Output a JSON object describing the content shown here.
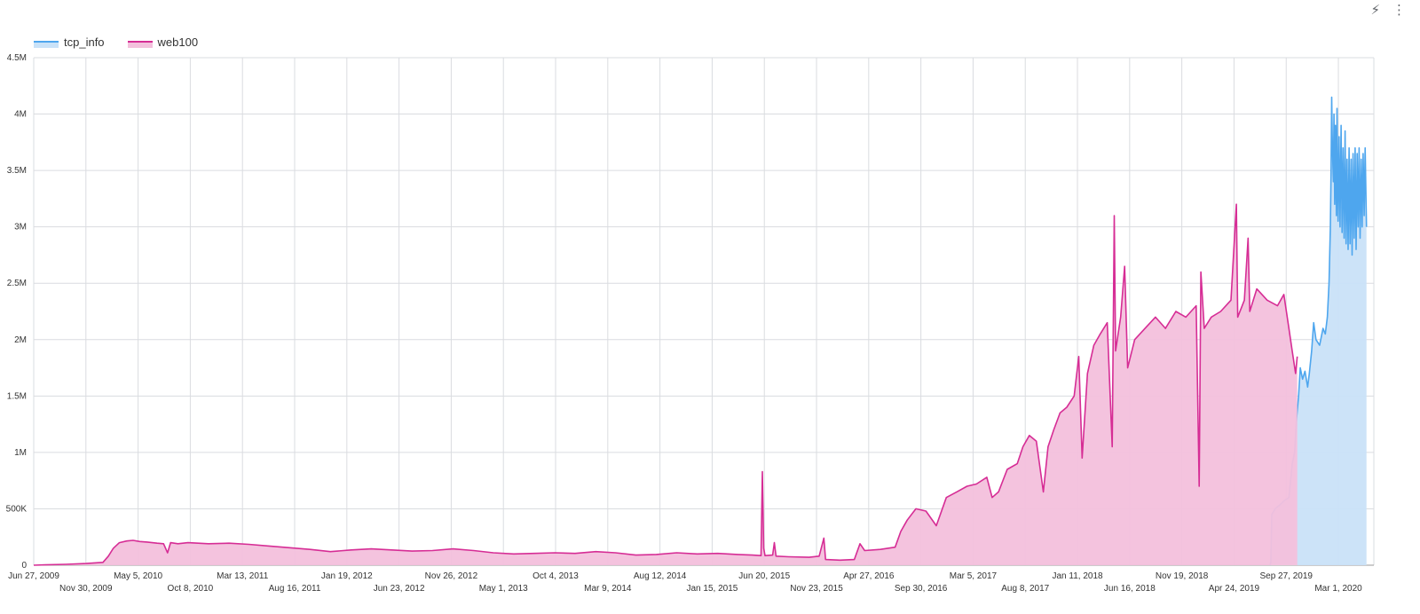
{
  "toolbar": {
    "quick_icon": "bolt-icon",
    "menu_icon": "more-vert-icon",
    "quick_glyph": "⚡",
    "menu_glyph": "⋮"
  },
  "colors": {
    "tcp_info": "#4ea6ee",
    "tcp_info_fill": "#c9e2f8",
    "web100": "#d62d95",
    "web100_fill": "#f3c0dc"
  },
  "chart_data": {
    "type": "area",
    "title": "",
    "xlabel": "",
    "ylabel": "",
    "ylim": [
      0,
      4500000
    ],
    "y_ticks": [
      {
        "value": 0,
        "label": "0"
      },
      {
        "value": 500000,
        "label": "500K"
      },
      {
        "value": 1000000,
        "label": "1M"
      },
      {
        "value": 1500000,
        "label": "1.5M"
      },
      {
        "value": 2000000,
        "label": "2M"
      },
      {
        "value": 2500000,
        "label": "2.5M"
      },
      {
        "value": 3000000,
        "label": "3M"
      },
      {
        "value": 3500000,
        "label": "3.5M"
      },
      {
        "value": 4000000,
        "label": "4M"
      },
      {
        "value": 4500000,
        "label": "4.5M"
      }
    ],
    "x_range": [
      "2009-06-27",
      "2020-06-15"
    ],
    "x_ticks": [
      {
        "date": "2009-06-27",
        "label": "Jun 27, 2009"
      },
      {
        "date": "2009-11-30",
        "label": "Nov 30, 2009"
      },
      {
        "date": "2010-05-05",
        "label": "May 5, 2010"
      },
      {
        "date": "2010-10-08",
        "label": "Oct 8, 2010"
      },
      {
        "date": "2011-03-13",
        "label": "Mar 13, 2011"
      },
      {
        "date": "2011-08-16",
        "label": "Aug 16, 2011"
      },
      {
        "date": "2012-01-19",
        "label": "Jan 19, 2012"
      },
      {
        "date": "2012-06-23",
        "label": "Jun 23, 2012"
      },
      {
        "date": "2012-11-26",
        "label": "Nov 26, 2012"
      },
      {
        "date": "2013-05-01",
        "label": "May 1, 2013"
      },
      {
        "date": "2013-10-04",
        "label": "Oct 4, 2013"
      },
      {
        "date": "2014-03-09",
        "label": "Mar 9, 2014"
      },
      {
        "date": "2014-08-12",
        "label": "Aug 12, 2014"
      },
      {
        "date": "2015-01-15",
        "label": "Jan 15, 2015"
      },
      {
        "date": "2015-06-20",
        "label": "Jun 20, 2015"
      },
      {
        "date": "2015-11-23",
        "label": "Nov 23, 2015"
      },
      {
        "date": "2016-04-27",
        "label": "Apr 27, 2016"
      },
      {
        "date": "2016-09-30",
        "label": "Sep 30, 2016"
      },
      {
        "date": "2017-03-05",
        "label": "Mar 5, 2017"
      },
      {
        "date": "2017-08-08",
        "label": "Aug 8, 2017"
      },
      {
        "date": "2018-01-11",
        "label": "Jan 11, 2018"
      },
      {
        "date": "2018-06-16",
        "label": "Jun 16, 2018"
      },
      {
        "date": "2018-11-19",
        "label": "Nov 19, 2018"
      },
      {
        "date": "2019-04-24",
        "label": "Apr 24, 2019"
      },
      {
        "date": "2019-09-27",
        "label": "Sep 27, 2019"
      },
      {
        "date": "2020-03-01",
        "label": "Mar 1, 2020"
      }
    ],
    "legend_placement": "top-left",
    "grid": true,
    "series": [
      {
        "name": "tcp_info",
        "points": [
          [
            "2019-08-10",
            0
          ],
          [
            "2019-08-12",
            30000
          ],
          [
            "2019-08-15",
            450000
          ],
          [
            "2019-08-25",
            500000
          ],
          [
            "2019-09-10",
            540000
          ],
          [
            "2019-09-20",
            570000
          ],
          [
            "2019-10-05",
            600000
          ],
          [
            "2019-10-15",
            900000
          ],
          [
            "2019-10-22",
            1000000
          ],
          [
            "2019-10-28",
            1300000
          ],
          [
            "2019-11-03",
            1500000
          ],
          [
            "2019-11-08",
            1750000
          ],
          [
            "2019-11-15",
            1650000
          ],
          [
            "2019-11-22",
            1720000
          ],
          [
            "2019-11-30",
            1580000
          ],
          [
            "2019-12-05",
            1700000
          ],
          [
            "2019-12-12",
            1900000
          ],
          [
            "2019-12-18",
            2150000
          ],
          [
            "2019-12-25",
            2000000
          ],
          [
            "2020-01-05",
            1950000
          ],
          [
            "2020-01-15",
            2100000
          ],
          [
            "2020-01-22",
            2050000
          ],
          [
            "2020-01-28",
            2200000
          ],
          [
            "2020-02-02",
            2500000
          ],
          [
            "2020-02-06",
            3000000
          ],
          [
            "2020-02-08",
            3500000
          ],
          [
            "2020-02-10",
            4150000
          ],
          [
            "2020-02-12",
            3700000
          ],
          [
            "2020-02-15",
            3400000
          ],
          [
            "2020-02-17",
            4000000
          ],
          [
            "2020-02-19",
            3200000
          ],
          [
            "2020-02-21",
            3900000
          ],
          [
            "2020-02-24",
            3100000
          ],
          [
            "2020-02-26",
            4050000
          ],
          [
            "2020-02-29",
            3050000
          ],
          [
            "2020-03-03",
            3800000
          ],
          [
            "2020-03-06",
            3000000
          ],
          [
            "2020-03-09",
            3900000
          ],
          [
            "2020-03-12",
            2950000
          ],
          [
            "2020-03-15",
            3700000
          ],
          [
            "2020-03-18",
            2900000
          ],
          [
            "2020-03-21",
            3850000
          ],
          [
            "2020-03-24",
            2850000
          ],
          [
            "2020-03-27",
            3600000
          ],
          [
            "2020-03-30",
            2800000
          ],
          [
            "2020-04-02",
            3700000
          ],
          [
            "2020-04-05",
            2850000
          ],
          [
            "2020-04-08",
            3600000
          ],
          [
            "2020-04-11",
            2750000
          ],
          [
            "2020-04-14",
            3650000
          ],
          [
            "2020-04-17",
            2900000
          ],
          [
            "2020-04-20",
            3700000
          ],
          [
            "2020-04-23",
            2800000
          ],
          [
            "2020-04-26",
            3650000
          ],
          [
            "2020-04-29",
            3000000
          ],
          [
            "2020-05-02",
            3700000
          ],
          [
            "2020-05-05",
            2900000
          ],
          [
            "2020-05-08",
            3600000
          ],
          [
            "2020-05-11",
            3000000
          ],
          [
            "2020-05-14",
            3650000
          ],
          [
            "2020-05-17",
            3100000
          ],
          [
            "2020-05-20",
            3700000
          ],
          [
            "2020-05-24",
            3000000
          ]
        ]
      },
      {
        "name": "web100",
        "points": [
          [
            "2009-06-27",
            0
          ],
          [
            "2009-08-01",
            3000
          ],
          [
            "2009-10-01",
            8000
          ],
          [
            "2009-12-01",
            15000
          ],
          [
            "2010-01-20",
            25000
          ],
          [
            "2010-02-05",
            80000
          ],
          [
            "2010-02-20",
            150000
          ],
          [
            "2010-03-10",
            200000
          ],
          [
            "2010-04-01",
            215000
          ],
          [
            "2010-04-20",
            220000
          ],
          [
            "2010-05-10",
            210000
          ],
          [
            "2010-06-01",
            205000
          ],
          [
            "2010-07-01",
            195000
          ],
          [
            "2010-07-20",
            190000
          ],
          [
            "2010-08-01",
            110000
          ],
          [
            "2010-08-10",
            200000
          ],
          [
            "2010-09-01",
            190000
          ],
          [
            "2010-10-01",
            200000
          ],
          [
            "2010-12-01",
            190000
          ],
          [
            "2011-02-01",
            195000
          ],
          [
            "2011-04-01",
            185000
          ],
          [
            "2011-06-01",
            170000
          ],
          [
            "2011-08-01",
            155000
          ],
          [
            "2011-10-01",
            140000
          ],
          [
            "2011-12-01",
            120000
          ],
          [
            "2012-02-01",
            135000
          ],
          [
            "2012-04-01",
            145000
          ],
          [
            "2012-06-01",
            135000
          ],
          [
            "2012-08-01",
            125000
          ],
          [
            "2012-10-01",
            130000
          ],
          [
            "2012-12-01",
            145000
          ],
          [
            "2013-02-01",
            130000
          ],
          [
            "2013-04-01",
            110000
          ],
          [
            "2013-06-01",
            100000
          ],
          [
            "2013-08-01",
            105000
          ],
          [
            "2013-10-01",
            110000
          ],
          [
            "2013-12-01",
            105000
          ],
          [
            "2014-02-01",
            120000
          ],
          [
            "2014-04-01",
            110000
          ],
          [
            "2014-06-01",
            90000
          ],
          [
            "2014-08-01",
            95000
          ],
          [
            "2014-10-01",
            110000
          ],
          [
            "2014-12-01",
            100000
          ],
          [
            "2015-02-01",
            105000
          ],
          [
            "2015-04-01",
            95000
          ],
          [
            "2015-05-15",
            90000
          ],
          [
            "2015-06-10",
            85000
          ],
          [
            "2015-06-14",
            830000
          ],
          [
            "2015-06-18",
            150000
          ],
          [
            "2015-06-22",
            85000
          ],
          [
            "2015-07-15",
            90000
          ],
          [
            "2015-07-20",
            200000
          ],
          [
            "2015-07-25",
            80000
          ],
          [
            "2015-09-01",
            75000
          ],
          [
            "2015-11-01",
            70000
          ],
          [
            "2015-12-01",
            80000
          ],
          [
            "2015-12-15",
            240000
          ],
          [
            "2015-12-20",
            50000
          ],
          [
            "2016-02-01",
            45000
          ],
          [
            "2016-03-15",
            50000
          ],
          [
            "2016-04-01",
            190000
          ],
          [
            "2016-04-15",
            130000
          ],
          [
            "2016-06-01",
            140000
          ],
          [
            "2016-07-15",
            160000
          ],
          [
            "2016-08-01",
            300000
          ],
          [
            "2016-08-20",
            400000
          ],
          [
            "2016-09-15",
            500000
          ],
          [
            "2016-10-15",
            480000
          ],
          [
            "2016-11-15",
            350000
          ],
          [
            "2016-12-15",
            600000
          ],
          [
            "2017-01-15",
            650000
          ],
          [
            "2017-02-15",
            700000
          ],
          [
            "2017-03-15",
            720000
          ],
          [
            "2017-04-15",
            780000
          ],
          [
            "2017-05-01",
            600000
          ],
          [
            "2017-05-20",
            650000
          ],
          [
            "2017-06-15",
            850000
          ],
          [
            "2017-07-15",
            900000
          ],
          [
            "2017-08-01",
            1050000
          ],
          [
            "2017-08-20",
            1150000
          ],
          [
            "2017-09-10",
            1100000
          ],
          [
            "2017-10-01",
            650000
          ],
          [
            "2017-10-15",
            1050000
          ],
          [
            "2017-11-01",
            1200000
          ],
          [
            "2017-11-20",
            1350000
          ],
          [
            "2017-12-10",
            1400000
          ],
          [
            "2018-01-01",
            1500000
          ],
          [
            "2018-01-15",
            1850000
          ],
          [
            "2018-01-25",
            950000
          ],
          [
            "2018-02-10",
            1700000
          ],
          [
            "2018-03-01",
            1950000
          ],
          [
            "2018-03-20",
            2050000
          ],
          [
            "2018-04-10",
            2150000
          ],
          [
            "2018-04-25",
            1050000
          ],
          [
            "2018-05-01",
            3100000
          ],
          [
            "2018-05-05",
            1900000
          ],
          [
            "2018-05-20",
            2200000
          ],
          [
            "2018-06-01",
            2650000
          ],
          [
            "2018-06-10",
            1750000
          ],
          [
            "2018-07-01",
            2000000
          ],
          [
            "2018-08-01",
            2100000
          ],
          [
            "2018-09-01",
            2200000
          ],
          [
            "2018-10-01",
            2100000
          ],
          [
            "2018-11-01",
            2250000
          ],
          [
            "2018-12-01",
            2200000
          ],
          [
            "2019-01-01",
            2300000
          ],
          [
            "2019-01-10",
            700000
          ],
          [
            "2019-01-15",
            2600000
          ],
          [
            "2019-01-25",
            2100000
          ],
          [
            "2019-02-15",
            2200000
          ],
          [
            "2019-03-15",
            2250000
          ],
          [
            "2019-04-15",
            2350000
          ],
          [
            "2019-05-01",
            3200000
          ],
          [
            "2019-05-05",
            2200000
          ],
          [
            "2019-05-25",
            2350000
          ],
          [
            "2019-06-05",
            2900000
          ],
          [
            "2019-06-10",
            2250000
          ],
          [
            "2019-07-01",
            2450000
          ],
          [
            "2019-08-01",
            2350000
          ],
          [
            "2019-09-01",
            2300000
          ],
          [
            "2019-09-20",
            2400000
          ],
          [
            "2019-10-05",
            2100000
          ],
          [
            "2019-10-15",
            1900000
          ],
          [
            "2019-10-25",
            1700000
          ],
          [
            "2019-10-30",
            1850000
          ]
        ]
      }
    ]
  }
}
